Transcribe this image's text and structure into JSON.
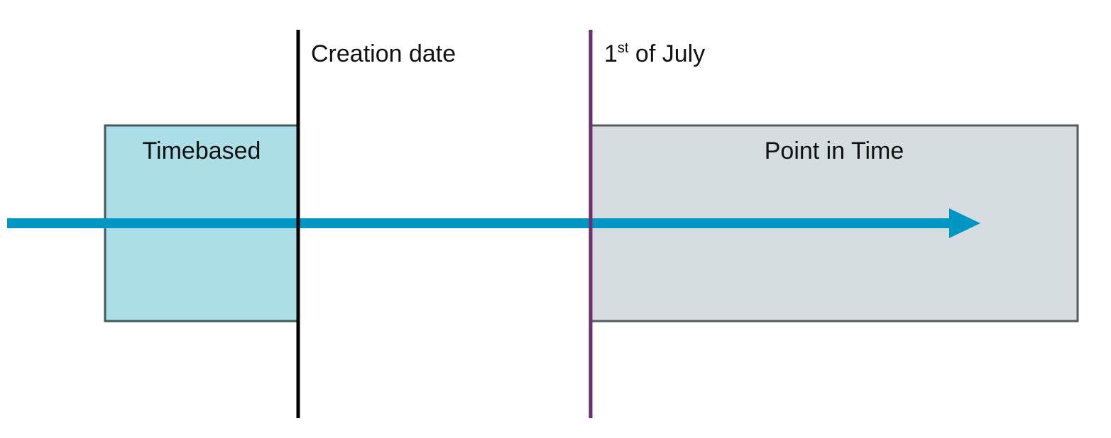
{
  "diagram": {
    "colors": {
      "timebased_fill": "#abdee7",
      "timebased_border": "#3f5b5f",
      "point_in_time_fill": "#d6dde0",
      "point_in_time_border": "#555a5c",
      "arrow": "#0096c4",
      "creation_date_line": "#000000",
      "july_line": "#6e2f72"
    },
    "regions": {
      "timebased": {
        "label": "Timebased"
      },
      "point_in_time": {
        "label": "Point in Time"
      }
    },
    "markers": {
      "creation_date": {
        "label": "Creation date"
      },
      "july_first": {
        "label_num": "1",
        "label_sup": "st",
        "label_rest": " of July"
      }
    },
    "timeline": {
      "icon": "right-arrow-icon"
    }
  }
}
